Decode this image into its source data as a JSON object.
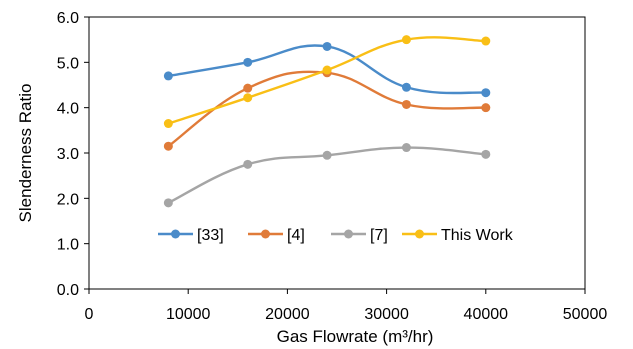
{
  "chart_data": {
    "type": "line",
    "smooth": true,
    "xlabel": "Gas Flowrate (m³/hr)",
    "ylabel": "Slenderness Ratio",
    "xlim": [
      0,
      50000
    ],
    "ylim": [
      0.0,
      6.0
    ],
    "x_ticks": [
      "0",
      "10000",
      "20000",
      "30000",
      "40000",
      "50000"
    ],
    "y_ticks": [
      "0.0",
      "1.0",
      "2.0",
      "3.0",
      "4.0",
      "5.0",
      "6.0"
    ],
    "grid": false,
    "legend_position": "lower-center inside plot",
    "x": [
      8000,
      16000,
      24000,
      32000,
      40000
    ],
    "series": [
      {
        "name": "[33]",
        "color": "#4a8bc9",
        "values": [
          4.7,
          5.0,
          5.35,
          4.45,
          4.33
        ]
      },
      {
        "name": "[4]",
        "color": "#e07b39",
        "values": [
          3.15,
          4.43,
          4.77,
          4.07,
          4.0
        ]
      },
      {
        "name": "[7]",
        "color": "#a5a5a5",
        "values": [
          1.9,
          2.75,
          2.95,
          3.12,
          2.97
        ]
      },
      {
        "name": "This Work",
        "color": "#f9bf16",
        "values": [
          3.65,
          4.22,
          4.83,
          5.5,
          5.47
        ]
      }
    ]
  }
}
